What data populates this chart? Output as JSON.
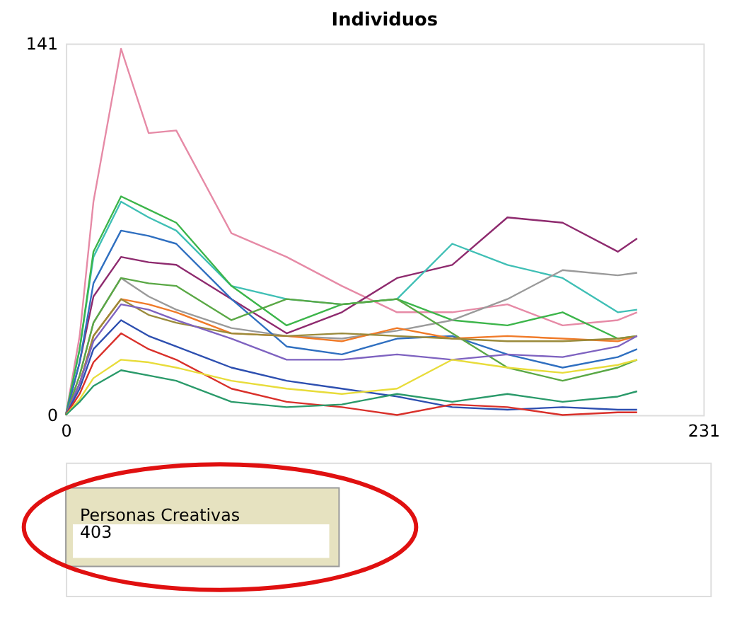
{
  "chart_data": {
    "type": "line",
    "title": "Individuos",
    "x": [
      0,
      5,
      10,
      20,
      30,
      40,
      60,
      80,
      100,
      120,
      140,
      160,
      180,
      200,
      207
    ],
    "series": [
      {
        "color": "#e68aa6",
        "values": [
          0,
          30,
          81,
          139,
          107,
          108,
          69,
          60,
          49,
          39,
          39,
          42,
          34,
          36,
          39
        ]
      },
      {
        "color": "#8e2a6e",
        "values": [
          0,
          20,
          45,
          60,
          58,
          57,
          44,
          31,
          39,
          52,
          57,
          75,
          73,
          62,
          67
        ]
      },
      {
        "color": "#3fbfb5",
        "values": [
          0,
          25,
          60,
          81,
          75,
          70,
          49,
          44,
          42,
          44,
          65,
          57,
          52,
          39,
          40
        ]
      },
      {
        "color": "#3cb54a",
        "values": [
          0,
          25,
          62,
          83,
          78,
          73,
          49,
          34,
          42,
          44,
          36,
          34,
          39,
          29,
          30
        ]
      },
      {
        "color": "#9a9a9a",
        "values": [
          0,
          15,
          35,
          52,
          45,
          40,
          33,
          30,
          29,
          32,
          36,
          44,
          55,
          53,
          54
        ]
      },
      {
        "color": "#2f6fc0",
        "values": [
          0,
          20,
          50,
          70,
          68,
          65,
          44,
          26,
          23,
          29,
          30,
          23,
          18,
          22,
          25
        ]
      },
      {
        "color": "#5aa845",
        "values": [
          0,
          15,
          35,
          52,
          50,
          49,
          36,
          44,
          42,
          44,
          31,
          18,
          13,
          18,
          21
        ]
      },
      {
        "color": "#f07a28",
        "values": [
          0,
          12,
          30,
          44,
          42,
          39,
          31,
          30,
          28,
          33,
          29,
          30,
          29,
          28,
          30
        ]
      },
      {
        "color": "#9a8a3a",
        "values": [
          0,
          12,
          30,
          44,
          38,
          35,
          31,
          30,
          31,
          30,
          29,
          28,
          28,
          29,
          30
        ]
      },
      {
        "color": "#7e62c0",
        "values": [
          0,
          12,
          28,
          42,
          40,
          36,
          29,
          21,
          21,
          23,
          21,
          23,
          22,
          26,
          30
        ]
      },
      {
        "color": "#2d4fb0",
        "values": [
          0,
          10,
          25,
          36,
          30,
          26,
          18,
          13,
          10,
          7,
          3,
          2,
          3,
          2,
          2
        ]
      },
      {
        "color": "#d9302a",
        "values": [
          0,
          8,
          20,
          31,
          25,
          21,
          10,
          5,
          3,
          0,
          4,
          3,
          0,
          1,
          1
        ]
      },
      {
        "color": "#e8dc3a",
        "values": [
          0,
          6,
          14,
          21,
          20,
          18,
          13,
          10,
          8,
          10,
          21,
          18,
          16,
          19,
          21
        ]
      },
      {
        "color": "#2a9a6a",
        "values": [
          0,
          5,
          11,
          17,
          15,
          13,
          5,
          3,
          4,
          8,
          5,
          8,
          5,
          7,
          9
        ]
      }
    ],
    "xlim": [
      0,
      231
    ],
    "ylim": [
      0,
      141
    ],
    "xticks": [
      0,
      231
    ],
    "yticks": [
      0,
      141
    ],
    "annotations": [
      "Personas Creativas",
      "403"
    ]
  }
}
